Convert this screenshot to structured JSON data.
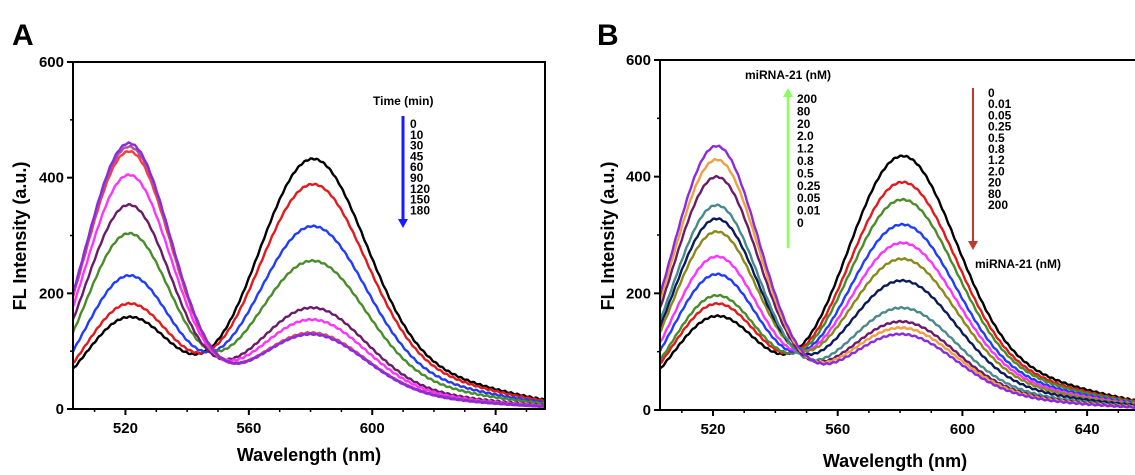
{
  "chart_data": [
    {
      "panel_label": "A",
      "type": "line",
      "xlabel": "Wavelength (nm)",
      "ylabel": "FL Intensity (a.u.)",
      "xlim": [
        503,
        656
      ],
      "ylim": [
        0,
        600
      ],
      "xticks": [
        520,
        560,
        600,
        640
      ],
      "yticks": [
        0,
        200,
        400,
        600
      ],
      "legend_title": "Time (min)",
      "legend_entries": [
        "0",
        "10",
        "30",
        "45",
        "60",
        "90",
        "120",
        "150",
        "180"
      ],
      "arrow_color": "#1a1aff",
      "series": [
        {
          "name": "0",
          "color": "#000000",
          "peak520": 155,
          "peak580": 455
        },
        {
          "name": "10",
          "color": "#e31a1c",
          "peak520": 178,
          "peak580": 408
        },
        {
          "name": "30",
          "color": "#1f3cff",
          "peak520": 226,
          "peak580": 330
        },
        {
          "name": "45",
          "color": "#4a8c2a",
          "peak520": 298,
          "peak580": 265
        },
        {
          "name": "60",
          "color": "#6a1b6a",
          "peak520": 347,
          "peak580": 178
        },
        {
          "name": "90",
          "color": "#ff33ff",
          "peak520": 398,
          "peak580": 155
        },
        {
          "name": "120",
          "color": "#ff3b3b",
          "peak520": 438,
          "peak580": 130
        },
        {
          "name": "150",
          "color": "#b0509a",
          "peak520": 446,
          "peak580": 128
        },
        {
          "name": "180",
          "color": "#8a2be2",
          "peak520": 452,
          "peak580": 127
        }
      ]
    },
    {
      "panel_label": "B",
      "type": "line",
      "xlabel": "Wavelength (nm)",
      "ylabel": "FL Intensity (a.u.)",
      "xlim": [
        503,
        656
      ],
      "ylim": [
        0,
        600
      ],
      "xticks": [
        520,
        560,
        600,
        640
      ],
      "yticks": [
        0,
        200,
        400,
        600
      ],
      "legend_title_up": "miRNA-21 (nM)",
      "legend_entries_up": [
        "200",
        "80",
        "20",
        "2.0",
        "1.2",
        "0.8",
        "0.5",
        "0.25",
        "0.05",
        "0.01",
        "0"
      ],
      "legend_title_down": "miRNA-21 (nM)",
      "legend_entries_down": [
        "0",
        "0.01",
        "0.05",
        "0.25",
        "0.5",
        "0.8",
        "1.2",
        "2.0",
        "20",
        "80",
        "200"
      ],
      "arrow_up_color": "#8bff5a",
      "arrow_down_color": "#c0392b",
      "series": [
        {
          "name": "0",
          "color": "#000000",
          "peak520": 157,
          "peak580": 458
        },
        {
          "name": "0.01",
          "color": "#e31a1c",
          "peak520": 178,
          "peak580": 410
        },
        {
          "name": "0.05",
          "color": "#4a8c2a",
          "peak520": 192,
          "peak580": 378
        },
        {
          "name": "0.25",
          "color": "#1f3cff",
          "peak520": 228,
          "peak580": 332
        },
        {
          "name": "0.5",
          "color": "#ff33ff",
          "peak520": 258,
          "peak580": 298
        },
        {
          "name": "0.8",
          "color": "#8a8a1a",
          "peak520": 300,
          "peak580": 268
        },
        {
          "name": "1.2",
          "color": "#0b1a5a",
          "peak520": 322,
          "peak580": 228
        },
        {
          "name": "2.0",
          "color": "#4a8a8a",
          "peak520": 345,
          "peak580": 178
        },
        {
          "name": "20",
          "color": "#6a1b6a",
          "peak520": 393,
          "peak580": 152
        },
        {
          "name": "80",
          "color": "#f0a040",
          "peak520": 422,
          "peak580": 140
        },
        {
          "name": "200",
          "color": "#8a2be2",
          "peak520": 445,
          "peak580": 128
        }
      ]
    }
  ]
}
